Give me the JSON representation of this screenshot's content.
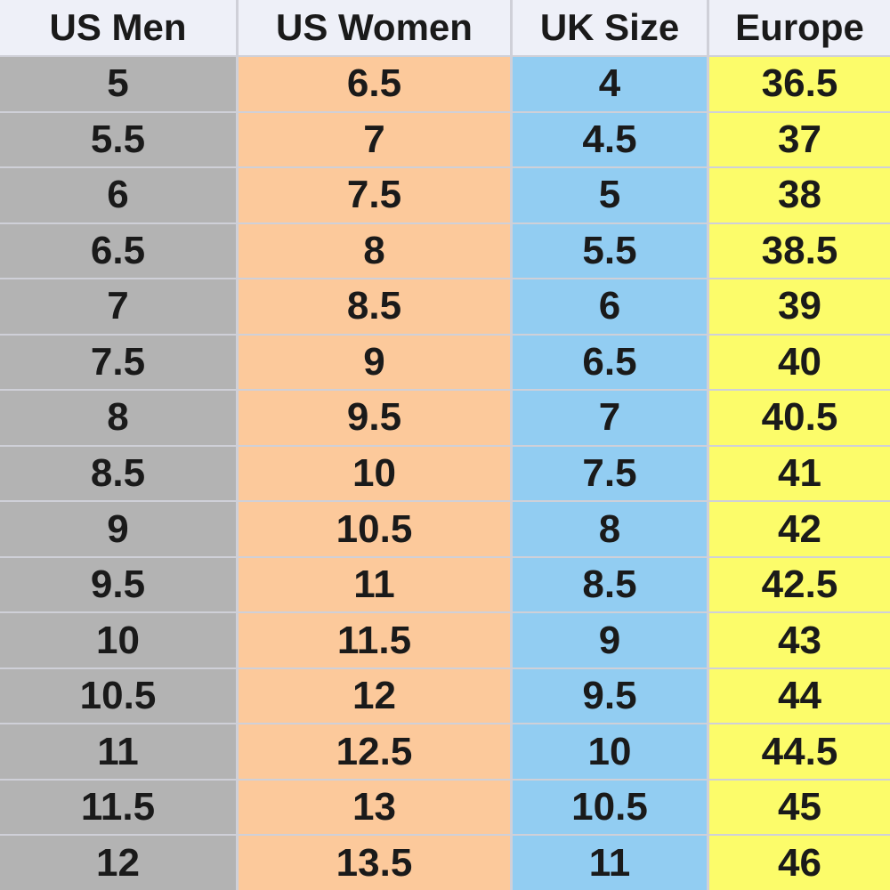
{
  "table": {
    "columns": [
      "US Men",
      "US Women",
      "UK Size",
      "Europe"
    ],
    "rows": [
      [
        "5",
        "6.5",
        "4",
        "36.5"
      ],
      [
        "5.5",
        "7",
        "4.5",
        "37"
      ],
      [
        "6",
        "7.5",
        "5",
        "38"
      ],
      [
        "6.5",
        "8",
        "5.5",
        "38.5"
      ],
      [
        "7",
        "8.5",
        "6",
        "39"
      ],
      [
        "7.5",
        "9",
        "6.5",
        "40"
      ],
      [
        "8",
        "9.5",
        "7",
        "40.5"
      ],
      [
        "8.5",
        "10",
        "7.5",
        "41"
      ],
      [
        "9",
        "10.5",
        "8",
        "42"
      ],
      [
        "9.5",
        "11",
        "8.5",
        "42.5"
      ],
      [
        "10",
        "11.5",
        "9",
        "43"
      ],
      [
        "10.5",
        "12",
        "9.5",
        "44"
      ],
      [
        "11",
        "12.5",
        "10",
        "44.5"
      ],
      [
        "11.5",
        "13",
        "10.5",
        "45"
      ],
      [
        "12",
        "13.5",
        "11",
        "46"
      ]
    ]
  }
}
